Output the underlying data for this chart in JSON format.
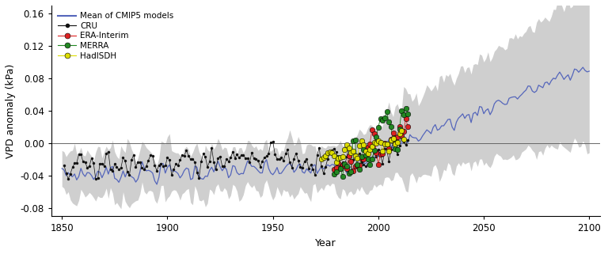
{
  "title": "",
  "xlabel": "Year",
  "ylabel": "VPD anomaly (kPa)",
  "xlim": [
    1845,
    2105
  ],
  "ylim": [
    -0.09,
    0.17
  ],
  "yticks": [
    -0.08,
    -0.04,
    0.0,
    0.04,
    0.08,
    0.12,
    0.16
  ],
  "xticks": [
    1850,
    1900,
    1950,
    2000,
    2050,
    2100
  ],
  "cmip5_color": "#5566bb",
  "shade_color": "#c0c0c0",
  "cru_color": "#111111",
  "era_color": "#dd2222",
  "merra_color": "#228822",
  "hadisdh_color": "#dddd00",
  "zero_line_color": "#666666",
  "legend_labels": [
    "Mean of CMIP5 models",
    "CRU",
    "ERA-Interim",
    "MERRA",
    "HadISDH"
  ],
  "figsize": [
    7.68,
    3.21
  ],
  "dpi": 100
}
